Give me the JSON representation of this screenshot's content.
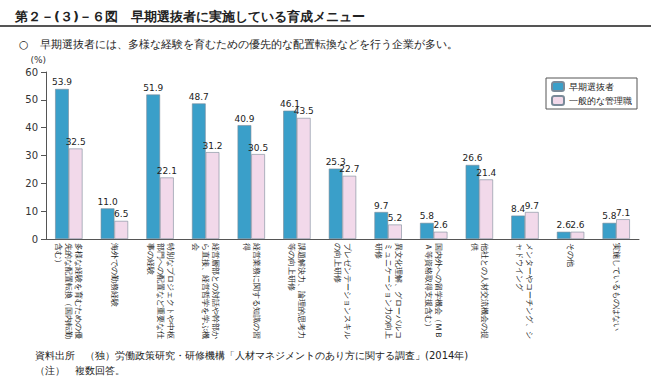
{
  "chart_data": {
    "type": "bar",
    "title": "第２－(３)－６図　早期選抜者に実施している育成メニュー",
    "subtitle": "○　早期選抜者には、多様な経験を育むための優先的な配置転換などを行う企業が多い。",
    "y_label": "(%)",
    "annotations": [
      "資料出所　（独）労働政策研究・研修機構「人材マネジメントのあり方に関する調査」(2014年)",
      "（注）　複数回答。"
    ],
    "categories": [
      "多様な経験を育むための優先的な配置転換（国内転勤含む）",
      "海外での勤務経験",
      "特別なプロジェクトや中枢部門への配置など重要な仕事の経験",
      "経営層部との対話や幹部から直接、経営哲学を学ぶ機会",
      "経営業務に関する知識の習得",
      "課題解決力、論理的思考力等の向上研修",
      "プレゼンテーションスキルの向上研修",
      "異文化理解、グローバルコミュニケーション力の向上研修",
      "国内外への留学機会（ＭＢＡ等資格取得支援含む）",
      "他社との人材交流機会の提供",
      "メンターやコーチング、シャドウイング",
      "その他",
      "実施しているものはない"
    ],
    "series": [
      {
        "name": "早期選抜者",
        "color": "#3a9fc9",
        "values": [
          53.9,
          11.0,
          51.9,
          48.7,
          40.9,
          46.1,
          25.3,
          9.7,
          5.8,
          26.6,
          8.4,
          2.6,
          5.8
        ],
        "value_labels": [
          "53.9",
          "11.0",
          "51.9",
          "48.7",
          "40.9",
          "46.1",
          "25.3",
          "9.7",
          "5.8",
          "26.6",
          "8.4",
          "2.6",
          "5.8"
        ]
      },
      {
        "name": "一般的な管理職",
        "color": "#f2d9ea",
        "values": [
          32.5,
          6.5,
          22.1,
          31.2,
          30.5,
          43.5,
          22.7,
          5.2,
          2.6,
          21.4,
          9.7,
          2.6,
          7.1
        ]
      }
    ],
    "ylim": [
      0,
      60
    ],
    "yticks": [
      0,
      10,
      20,
      30,
      40,
      50,
      60
    ],
    "grid": false,
    "legend": "upper right",
    "data_labels": true
  }
}
